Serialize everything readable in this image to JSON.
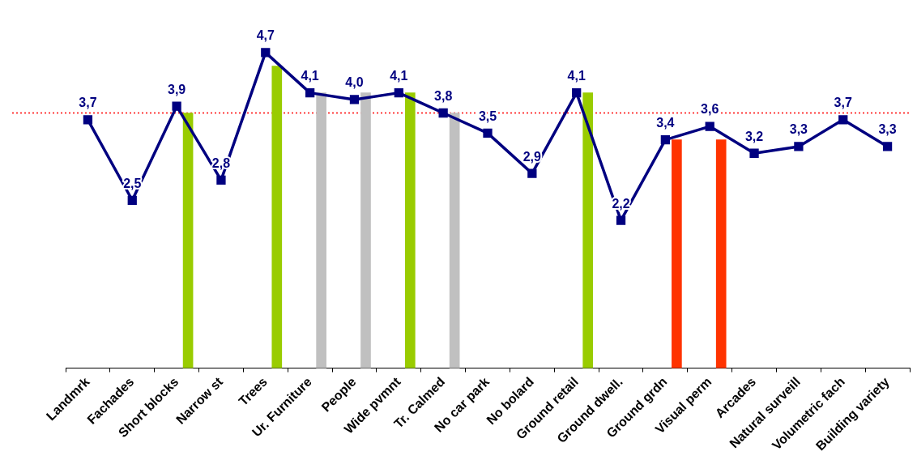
{
  "chart_data": {
    "type": "line",
    "categories": [
      "Landmrk",
      "Fachades",
      "Short blocks",
      "Narrow st",
      "Trees",
      "Ur. Furniture",
      "People",
      "Wide pvmnt",
      "Tr. Calmed",
      "No car park",
      "No bolard",
      "Ground retail",
      "Ground dwell.",
      "Ground grdn",
      "Visual perm",
      "Arcades",
      "Natural surveill",
      "Volumetric fach",
      "Building variety"
    ],
    "marker": "square",
    "legend": false,
    "series": [
      {
        "color": "#000080",
        "values": [
          3.7,
          2.5,
          3.9,
          2.8,
          4.7,
          4.1,
          4.0,
          4.1,
          3.8,
          3.5,
          2.9,
          4.1,
          2.2,
          3.4,
          3.6,
          3.2,
          3.3,
          3.7,
          3.3
        ],
        "value_labels": [
          "3,7",
          "2,5",
          "3,9",
          "2,8",
          "4,7",
          "4,1",
          "4,0",
          "4,1",
          "3,8",
          "3,5",
          "2,9",
          "4,1",
          "2,2",
          "3,4",
          "3,6",
          "3,2",
          "3,3",
          "3,7",
          "3,3"
        ]
      },
      {
        "type": "bar",
        "values": [
          null,
          null,
          3.8,
          null,
          4.5,
          4.1,
          4.1,
          4.1,
          3.8,
          null,
          null,
          4.1,
          null,
          3.4,
          3.4,
          null,
          null,
          null,
          null
        ],
        "colors": [
          "#99cc00",
          "#99cc00",
          "#99cc00",
          "#99cc00",
          "#99cc00",
          "#c0c0c0",
          "#c0c0c0",
          "#99cc00",
          "#c0c0c0",
          "#c0c0c0",
          "#c0c0c0",
          "#99cc00",
          "#99cc00",
          "#ff3300",
          "#ff3300",
          "#ff3300",
          "#ff3300",
          "#ff3300",
          "#ff3300"
        ]
      }
    ],
    "ref_lines": [
      {
        "axis": "y",
        "value": 3.8,
        "color": "#ff0000",
        "line_style": "dotted"
      }
    ]
  }
}
